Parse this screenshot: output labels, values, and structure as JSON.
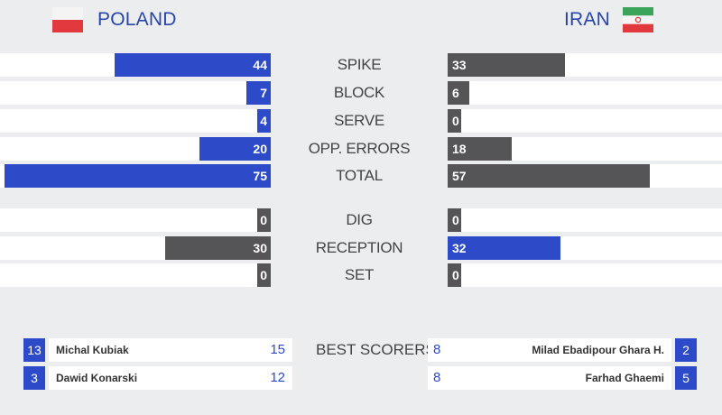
{
  "teams": {
    "left": {
      "name": "POLAND",
      "flag": "poland-flag"
    },
    "right": {
      "name": "IRAN",
      "flag": "iran-flag"
    }
  },
  "colors": {
    "blue": "#2d4bc9",
    "gray": "#555557",
    "team_text": "#2746a8"
  },
  "stats": [
    {
      "label": "SPIKE",
      "left": "44",
      "right": "33",
      "left_color": "blue",
      "right_color": "gray",
      "left_frac": 0.57,
      "right_frac": 0.43
    },
    {
      "label": "BLOCK",
      "left": "7",
      "right": "6",
      "left_color": "blue",
      "right_color": "gray"
    },
    {
      "label": "SERVE",
      "left": "4",
      "right": "0",
      "left_color": "blue",
      "right_color": "gray"
    },
    {
      "label": "OPP. ERRORS",
      "left": "20",
      "right": "18",
      "left_color": "blue",
      "right_color": "gray"
    },
    {
      "label": "TOTAL",
      "left": "75",
      "right": "57",
      "left_color": "blue",
      "right_color": "gray"
    },
    {
      "label": "DIG",
      "left": "0",
      "right": "0",
      "left_color": "gray",
      "right_color": "gray"
    },
    {
      "label": "RECEPTION",
      "left": "30",
      "right": "32",
      "left_color": "gray",
      "right_color": "blue"
    },
    {
      "label": "SET",
      "left": "0",
      "right": "0",
      "left_color": "gray",
      "right_color": "gray"
    }
  ],
  "best_scorers": {
    "label": "BEST SCORERS",
    "left": [
      {
        "number": "13",
        "name": "Michal Kubiak",
        "points": "15"
      },
      {
        "number": "3",
        "name": "Dawid Konarski",
        "points": "12"
      }
    ],
    "right": [
      {
        "number": "2",
        "name": "Milad Ebadipour Ghara H.",
        "points": "8"
      },
      {
        "number": "5",
        "name": "Farhad Ghaemi",
        "points": "8"
      }
    ]
  }
}
